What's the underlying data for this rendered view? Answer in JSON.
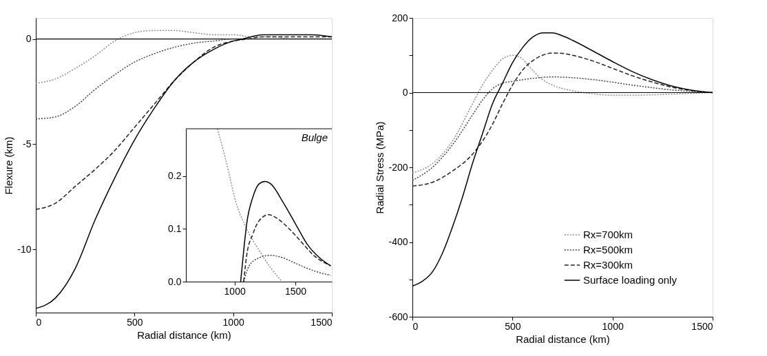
{
  "chart_data": [
    {
      "type": "line",
      "xlabel": "Radial distance (km)",
      "ylabel": "Flexure (km)",
      "xlim": [
        0,
        1500
      ],
      "ylim": [
        -13,
        1
      ],
      "xticks": [
        0,
        500,
        1000,
        1500
      ],
      "yticks": [
        0,
        -5,
        -10
      ],
      "ref_lines": [
        {
          "axis": "y",
          "value": 0,
          "color": "#000000"
        }
      ],
      "series": [
        {
          "color": "#8c8c8c",
          "line_style": "dotted",
          "x": [
            0,
            100,
            200,
            300,
            400,
            500,
            600,
            700,
            800,
            900,
            1000,
            1100,
            1200,
            1300,
            1400,
            1500
          ],
          "values": [
            -2.1,
            -1.9,
            -1.4,
            -0.8,
            -0.1,
            0.3,
            0.4,
            0.4,
            0.3,
            0.2,
            0.2,
            0.1,
            0.1,
            0.0,
            0.0,
            0.0
          ]
        },
        {
          "color": "#404040",
          "line_style": "dotted",
          "x": [
            0,
            100,
            200,
            300,
            400,
            500,
            600,
            700,
            800,
            900,
            1000,
            1100,
            1200,
            1300,
            1400,
            1500
          ],
          "values": [
            -3.8,
            -3.7,
            -3.2,
            -2.4,
            -1.7,
            -1.1,
            -0.7,
            -0.4,
            -0.2,
            -0.1,
            0.0,
            0.0,
            0.0,
            0.0,
            0.0,
            0.0
          ]
        },
        {
          "color": "#202020",
          "line_style": "dashed",
          "x": [
            0,
            100,
            200,
            300,
            400,
            500,
            600,
            700,
            800,
            900,
            1000,
            1075,
            1150,
            1280,
            1400,
            1500
          ],
          "values": [
            -8.1,
            -7.8,
            -7.0,
            -6.2,
            -5.3,
            -4.2,
            -3.1,
            -2.0,
            -1.1,
            -0.4,
            -0.1,
            0.0,
            0.1,
            0.1,
            0.1,
            0.1
          ]
        },
        {
          "color": "#000000",
          "line_style": "solid",
          "x": [
            0,
            100,
            200,
            300,
            400,
            500,
            600,
            700,
            800,
            900,
            1000,
            1050,
            1150,
            1250,
            1400,
            1500
          ],
          "values": [
            -12.8,
            -12.3,
            -10.9,
            -8.6,
            -6.6,
            -4.8,
            -3.3,
            -2.0,
            -1.1,
            -0.5,
            -0.1,
            0.0,
            0.2,
            0.2,
            0.2,
            0.1
          ]
        }
      ]
    },
    {
      "type": "line",
      "annotations": [
        "Bulge"
      ],
      "xlim": [
        600,
        1800
      ],
      "ylim": [
        0,
        0.29
      ],
      "xticks": [
        1000,
        1500
      ],
      "yticks": [
        {
          "value": 0,
          "label": "0.0"
        },
        {
          "value": 0.1,
          "label": "0.1"
        },
        {
          "value": 0.2,
          "label": "0.2"
        }
      ],
      "series": [
        {
          "color": "#8c8c8c",
          "line_style": "dotted",
          "x": [
            860,
            950,
            1000,
            1100,
            1200,
            1300,
            1390
          ],
          "values": [
            0.29,
            0.21,
            0.16,
            0.1,
            0.06,
            0.025,
            0.0
          ]
        },
        {
          "color": "#404040",
          "line_style": "dotted",
          "x": [
            1075,
            1120,
            1200,
            1290,
            1400,
            1500,
            1600,
            1700,
            1790
          ],
          "values": [
            0.0,
            0.03,
            0.045,
            0.05,
            0.045,
            0.035,
            0.025,
            0.017,
            0.012
          ]
        },
        {
          "color": "#202020",
          "line_style": "dashed",
          "x": [
            1075,
            1100,
            1150,
            1200,
            1280,
            1350,
            1450,
            1550,
            1650,
            1790
          ],
          "values": [
            0.0,
            0.05,
            0.09,
            0.115,
            0.127,
            0.12,
            0.1,
            0.075,
            0.05,
            0.03
          ]
        },
        {
          "color": "#000000",
          "line_style": "solid",
          "x": [
            1050,
            1080,
            1100,
            1150,
            1200,
            1250,
            1300,
            1400,
            1500,
            1600,
            1700,
            1790
          ],
          "values": [
            0.0,
            0.07,
            0.11,
            0.16,
            0.185,
            0.19,
            0.185,
            0.15,
            0.11,
            0.07,
            0.045,
            0.03
          ]
        }
      ]
    },
    {
      "type": "line",
      "xlabel": "Radial distance (km)",
      "ylabel": "Radial Stress (MPa)",
      "xlim": [
        0,
        1500
      ],
      "ylim": [
        -600,
        200
      ],
      "xticks": [
        0,
        500,
        1000,
        1500
      ],
      "yticks": [
        200,
        {
          "value": 100,
          "label": null
        },
        0,
        {
          "value": -100,
          "label": null
        },
        -200,
        {
          "value": -300,
          "label": null
        },
        -400,
        {
          "value": -500,
          "label": null
        },
        -600
      ],
      "legend": "bottom right",
      "ref_lines": [
        {
          "axis": "y",
          "value": 0,
          "color": "#000000"
        }
      ],
      "series": [
        {
          "name": "Rx=700km",
          "color": "#8c8c8c",
          "line_style": "dotted",
          "x": [
            0,
            100,
            200,
            300,
            350,
            400,
            450,
            500,
            550,
            600,
            650,
            700,
            800,
            900,
            1000,
            1100,
            1200,
            1300,
            1400,
            1500
          ],
          "values": [
            -215,
            -190,
            -130,
            -30,
            20,
            60,
            90,
            100,
            90,
            60,
            35,
            20,
            5,
            -3,
            -7,
            -7,
            -6,
            -4,
            -2,
            0
          ]
        },
        {
          "name": "Rx=500km",
          "color": "#404040",
          "line_style": "dotted",
          "x": [
            0,
            100,
            200,
            300,
            350,
            400,
            450,
            500,
            600,
            700,
            800,
            900,
            1000,
            1100,
            1200,
            1300,
            1400,
            1500
          ],
          "values": [
            -235,
            -200,
            -140,
            -60,
            -20,
            10,
            25,
            30,
            38,
            42,
            40,
            35,
            28,
            20,
            13,
            7,
            3,
            0
          ]
        },
        {
          "name": "Rx=300km",
          "color": "#202020",
          "line_style": "dashed",
          "x": [
            0,
            100,
            200,
            300,
            350,
            400,
            450,
            500,
            550,
            600,
            650,
            700,
            750,
            800,
            900,
            1000,
            1100,
            1200,
            1300,
            1400,
            1500
          ],
          "values": [
            -250,
            -240,
            -210,
            -165,
            -130,
            -85,
            -30,
            20,
            60,
            85,
            100,
            106,
            105,
            100,
            85,
            65,
            45,
            28,
            14,
            5,
            0
          ]
        },
        {
          "name": "Surface loading only",
          "color": "#000000",
          "line_style": "solid",
          "x": [
            0,
            50,
            100,
            150,
            200,
            250,
            300,
            350,
            400,
            450,
            500,
            550,
            600,
            650,
            700,
            750,
            800,
            900,
            1000,
            1100,
            1200,
            1300,
            1400,
            1500
          ],
          "values": [
            -518,
            -505,
            -480,
            -430,
            -360,
            -280,
            -190,
            -110,
            -30,
            25,
            80,
            120,
            148,
            160,
            160,
            152,
            140,
            112,
            83,
            56,
            34,
            17,
            6,
            0
          ]
        }
      ]
    }
  ]
}
